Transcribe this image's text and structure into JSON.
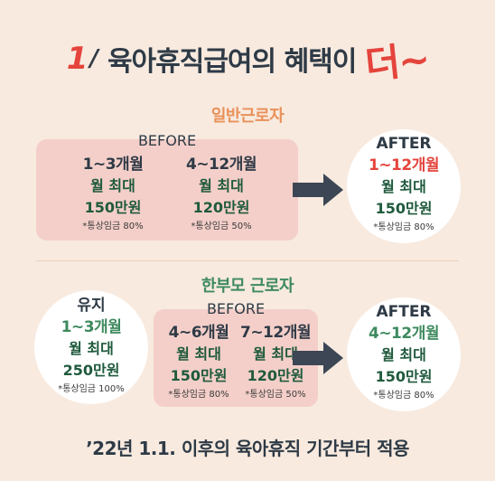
{
  "title": {
    "number": "1",
    "slash": "/",
    "text": "육아휴직급여의 혜택이",
    "accent": "더~"
  },
  "general": {
    "label": "일반근로자",
    "before": {
      "label": "BEFORE",
      "columns": [
        {
          "duration": "1~3개월",
          "max": "월 최대",
          "amount": "150만원",
          "note": "*통상임금 80%"
        },
        {
          "duration": "4~12개월",
          "max": "월 최대",
          "amount": "120만원",
          "note": "*통상임금 50%"
        }
      ]
    },
    "after": {
      "label": "AFTER",
      "duration": "1~12개월",
      "max": "월 최대",
      "amount": "150만원",
      "note": "*통상임금 80%"
    }
  },
  "single_parent": {
    "label": "한부모 근로자",
    "keep": {
      "label": "유지",
      "duration": "1~3개월",
      "max": "월 최대",
      "amount": "250만원",
      "note": "*통상임금 100%"
    },
    "before": {
      "label": "BEFORE",
      "columns": [
        {
          "duration": "4~6개월",
          "max": "월 최대",
          "amount": "150만원",
          "note": "*통상임금 80%"
        },
        {
          "duration": "7~12개월",
          "max": "월 최대",
          "amount": "120만원",
          "note": "*통상임금 50%"
        }
      ]
    },
    "after": {
      "label": "AFTER",
      "duration": "4~12개월",
      "max": "월 최대",
      "amount": "150만원",
      "note": "*통상임금 80%"
    }
  },
  "footer": "’22년 1.1. 이후의 육아휴직 기간부터 적용",
  "colors": {
    "background": "#f8eadf",
    "panel": "#f4cfc9",
    "accent_red": "#e4443c",
    "accent_green": "#3e8a5f",
    "accent_orange": "#e9915a",
    "arrow": "#3c4654"
  }
}
